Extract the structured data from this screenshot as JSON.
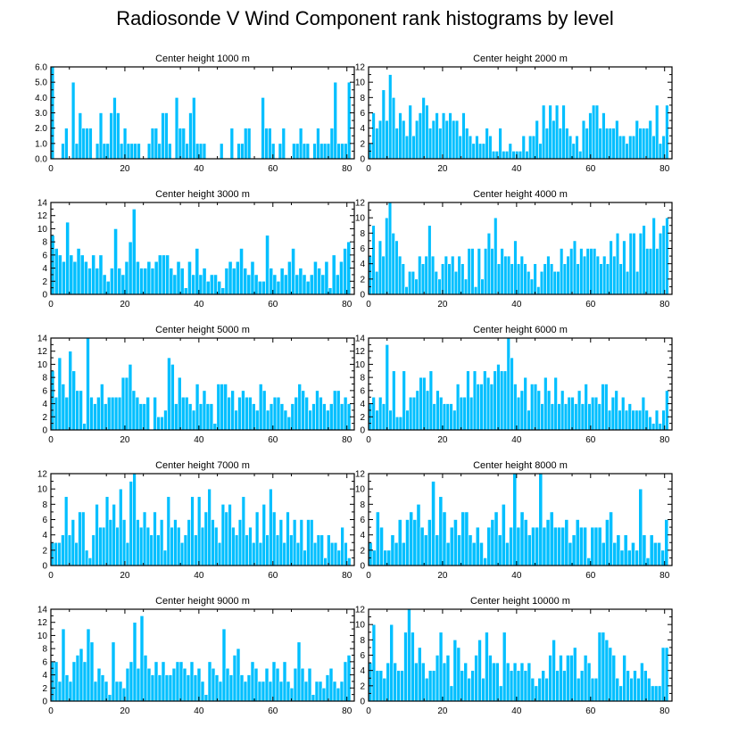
{
  "title": "Radiosonde V Wind Component rank histograms by level",
  "colors": {
    "bar": "#00bfff",
    "bar_edge": "#ffffff",
    "axis": "#000000"
  },
  "chart_data": [
    {
      "type": "bar",
      "title": "Center height 1000 m",
      "ylim": [
        0,
        6
      ],
      "yticks": [
        "0.0",
        "1.0",
        "2.0",
        "3.0",
        "4.0",
        "5.0",
        "6.0"
      ],
      "xticks": [
        "0",
        "20",
        "40",
        "60",
        "80"
      ],
      "xlim": [
        0,
        82
      ],
      "values": [
        6,
        0,
        0,
        1,
        2,
        0,
        5,
        1,
        3,
        2,
        2,
        2,
        0,
        1,
        3,
        1,
        1,
        3,
        4,
        3,
        1,
        2,
        1,
        1,
        1,
        1,
        0,
        0,
        1,
        2,
        2,
        1,
        3,
        3,
        1,
        0,
        4,
        2,
        2,
        1,
        3,
        4,
        1,
        1,
        1,
        0,
        0,
        0,
        0,
        1,
        0,
        0,
        2,
        0,
        1,
        1,
        2,
        2,
        0,
        0,
        0,
        4,
        2,
        2,
        1,
        0,
        1,
        2,
        0,
        0,
        1,
        1,
        2,
        1,
        1,
        0,
        1,
        2,
        1,
        1,
        1,
        2,
        5,
        1,
        1,
        1,
        5,
        0
      ]
    },
    {
      "type": "bar",
      "title": "Center height 2000 m",
      "ylim": [
        0,
        12
      ],
      "yticks": [
        "0",
        "2",
        "4",
        "6",
        "8",
        "10",
        "12"
      ],
      "xticks": [
        "0",
        "20",
        "40",
        "60",
        "80"
      ],
      "xlim": [
        0,
        82
      ],
      "values": [
        2,
        6,
        4,
        5,
        9,
        5,
        11,
        8,
        4,
        6,
        5,
        3,
        7,
        3,
        5,
        6,
        8,
        7,
        4,
        5,
        6,
        4,
        6,
        5,
        6,
        5,
        5,
        3,
        6,
        4,
        3,
        2,
        3,
        2,
        2,
        4,
        3,
        1,
        1,
        4,
        1,
        1,
        2,
        1,
        1,
        1,
        3,
        1,
        3,
        3,
        5,
        2,
        7,
        4,
        7,
        5,
        7,
        4,
        7,
        4,
        3,
        2,
        3,
        1,
        5,
        4,
        6,
        7,
        7,
        4,
        6,
        4,
        4,
        4,
        5,
        3,
        3,
        2,
        3,
        3,
        5,
        4,
        4,
        4,
        5,
        3,
        7,
        2,
        3,
        7,
        0
      ]
    },
    {
      "type": "bar",
      "title": "Center height 3000 m",
      "ylim": [
        0,
        14
      ],
      "yticks": [
        "0",
        "2",
        "4",
        "6",
        "8",
        "10",
        "12",
        "14"
      ],
      "xticks": [
        "0",
        "20",
        "40",
        "60",
        "80"
      ],
      "xlim": [
        0,
        82
      ],
      "values": [
        9,
        7,
        6,
        5,
        11,
        6,
        5,
        7,
        6,
        5,
        4,
        6,
        4,
        6,
        3,
        2,
        4,
        10,
        4,
        3,
        5,
        8,
        13,
        5,
        4,
        4,
        5,
        4,
        5,
        6,
        6,
        6,
        4,
        3,
        5,
        4,
        1,
        5,
        3,
        7,
        3,
        4,
        2,
        3,
        3,
        2,
        1,
        4,
        5,
        4,
        5,
        7,
        4,
        3,
        5,
        3,
        2,
        2,
        9,
        4,
        3,
        2,
        4,
        3,
        5,
        7,
        3,
        4,
        3,
        2,
        3,
        5,
        4,
        3,
        5,
        1,
        6,
        3,
        5,
        7,
        8,
        0
      ]
    },
    {
      "type": "bar",
      "title": "Center height 4000 m",
      "ylim": [
        0,
        12
      ],
      "yticks": [
        "0",
        "2",
        "4",
        "6",
        "8",
        "10",
        "12"
      ],
      "xticks": [
        "0",
        "20",
        "40",
        "60",
        "80"
      ],
      "xlim": [
        0,
        82
      ],
      "values": [
        5,
        9,
        3,
        7,
        5,
        10,
        12,
        8,
        7,
        5,
        4,
        1,
        3,
        3,
        2,
        5,
        4,
        5,
        9,
        5,
        3,
        2,
        4,
        5,
        4,
        5,
        3,
        5,
        4,
        2,
        6,
        6,
        1,
        6,
        2,
        6,
        8,
        6,
        10,
        4,
        6,
        5,
        5,
        4,
        7,
        4,
        5,
        4,
        3,
        2,
        4,
        1,
        3,
        4,
        5,
        4,
        3,
        3,
        6,
        4,
        5,
        6,
        7,
        4,
        6,
        5,
        6,
        6,
        6,
        5,
        4,
        5,
        4,
        7,
        5,
        8,
        4,
        7,
        3,
        8,
        8,
        3,
        8,
        9,
        6,
        6,
        10,
        6,
        8,
        9,
        10,
        0
      ]
    },
    {
      "type": "bar",
      "title": "Center height 5000 m",
      "ylim": [
        0,
        14
      ],
      "yticks": [
        "0",
        "2",
        "4",
        "6",
        "8",
        "10",
        "12",
        "14"
      ],
      "xticks": [
        "0",
        "20",
        "40",
        "60",
        "80"
      ],
      "xlim": [
        0,
        82
      ],
      "values": [
        9,
        5,
        11,
        7,
        5,
        12,
        9,
        6,
        6,
        1,
        14,
        5,
        4,
        5,
        7,
        4,
        5,
        5,
        5,
        5,
        8,
        8,
        10,
        6,
        5,
        4,
        4,
        5,
        0,
        5,
        2,
        2,
        3,
        11,
        10,
        4,
        8,
        5,
        5,
        4,
        3,
        7,
        4,
        6,
        4,
        4,
        1,
        7,
        7,
        7,
        5,
        6,
        3,
        5,
        6,
        5,
        5,
        4,
        3,
        7,
        6,
        3,
        4,
        5,
        5,
        4,
        3,
        2,
        4,
        5,
        7,
        6,
        5,
        3,
        4,
        6,
        5,
        4,
        3,
        4,
        6,
        6,
        4,
        5,
        4,
        0
      ]
    },
    {
      "type": "bar",
      "title": "Center height 6000 m",
      "ylim": [
        0,
        14
      ],
      "yticks": [
        "0",
        "2",
        "4",
        "6",
        "8",
        "10",
        "12",
        "14"
      ],
      "xticks": [
        "0",
        "20",
        "40",
        "60",
        "80"
      ],
      "xlim": [
        0,
        82
      ],
      "values": [
        4,
        5,
        3,
        5,
        4,
        13,
        3,
        9,
        2,
        2,
        9,
        3,
        5,
        5,
        6,
        8,
        8,
        6,
        9,
        4,
        6,
        5,
        4,
        4,
        4,
        3,
        7,
        5,
        5,
        9,
        5,
        9,
        7,
        7,
        9,
        8,
        7,
        9,
        10,
        9,
        9,
        14,
        11,
        7,
        5,
        6,
        8,
        3,
        7,
        7,
        6,
        4,
        8,
        6,
        4,
        8,
        4,
        6,
        4,
        5,
        5,
        4,
        6,
        4,
        7,
        4,
        5,
        5,
        4,
        7,
        7,
        3,
        5,
        6,
        3,
        5,
        3,
        4,
        3,
        3,
        3,
        5,
        3,
        2,
        1,
        3,
        1,
        3,
        6,
        0
      ]
    },
    {
      "type": "bar",
      "title": "Center height 7000 m",
      "ylim": [
        0,
        12
      ],
      "yticks": [
        "0",
        "2",
        "4",
        "6",
        "8",
        "10",
        "12"
      ],
      "xticks": [
        "0",
        "20",
        "40",
        "60",
        "80"
      ],
      "xlim": [
        0,
        82
      ],
      "values": [
        3,
        3,
        3,
        4,
        9,
        4,
        6,
        3,
        7,
        7,
        2,
        1,
        4,
        8,
        5,
        5,
        9,
        6,
        8,
        5,
        10,
        6,
        3,
        11,
        12,
        6,
        5,
        7,
        5,
        4,
        7,
        4,
        6,
        2,
        9,
        5,
        6,
        5,
        3,
        4,
        6,
        9,
        4,
        9,
        5,
        7,
        10,
        6,
        5,
        3,
        8,
        7,
        8,
        5,
        4,
        6,
        9,
        4,
        5,
        3,
        7,
        3,
        8,
        4,
        10,
        7,
        4,
        6,
        3,
        7,
        4,
        6,
        3,
        6,
        2,
        6,
        6,
        3,
        4,
        4,
        1,
        4,
        3,
        3,
        2,
        5,
        3,
        1,
        0
      ]
    },
    {
      "type": "bar",
      "title": "Center height 8000 m",
      "ylim": [
        0,
        12
      ],
      "yticks": [
        "0",
        "2",
        "4",
        "6",
        "8",
        "10",
        "12"
      ],
      "xticks": [
        "0",
        "20",
        "40",
        "60",
        "80"
      ],
      "xlim": [
        0,
        82
      ],
      "values": [
        3,
        2,
        7,
        5,
        2,
        2,
        4,
        3,
        6,
        3,
        6,
        7,
        6,
        8,
        5,
        4,
        6,
        11,
        4,
        9,
        7,
        3,
        5,
        6,
        4,
        7,
        7,
        4,
        3,
        5,
        3,
        1,
        5,
        6,
        7,
        4,
        8,
        3,
        5,
        12,
        5,
        7,
        6,
        4,
        5,
        5,
        12,
        5,
        6,
        7,
        5,
        5,
        5,
        6,
        3,
        4,
        6,
        5,
        5,
        1,
        5,
        5,
        5,
        3,
        6,
        7,
        3,
        4,
        2,
        4,
        2,
        3,
        2,
        10,
        4,
        1,
        4,
        3,
        3,
        2,
        6,
        0
      ]
    },
    {
      "type": "bar",
      "title": "Center height 9000 m",
      "ylim": [
        0,
        14
      ],
      "yticks": [
        "0",
        "2",
        "4",
        "6",
        "8",
        "10",
        "12",
        "14"
      ],
      "xticks": [
        "0",
        "20",
        "40",
        "60",
        "80"
      ],
      "xlim": [
        0,
        82
      ],
      "values": [
        6,
        6,
        3,
        11,
        4,
        3,
        6,
        7,
        8,
        6,
        11,
        9,
        3,
        5,
        4,
        3,
        1,
        9,
        3,
        3,
        2,
        5,
        6,
        12,
        5,
        13,
        7,
        5,
        4,
        6,
        4,
        6,
        4,
        4,
        5,
        6,
        6,
        5,
        4,
        6,
        4,
        5,
        3,
        1,
        6,
        5,
        4,
        3,
        11,
        5,
        4,
        7,
        8,
        4,
        3,
        4,
        6,
        5,
        3,
        3,
        5,
        3,
        6,
        5,
        3,
        6,
        3,
        2,
        5,
        9,
        5,
        3,
        5,
        1,
        3,
        3,
        2,
        4,
        5,
        3,
        2,
        3,
        6,
        7,
        0
      ]
    },
    {
      "type": "bar",
      "title": "Center height 10000 m",
      "ylim": [
        0,
        12
      ],
      "yticks": [
        "0",
        "2",
        "4",
        "6",
        "8",
        "10",
        "12"
      ],
      "xticks": [
        "0",
        "20",
        "40",
        "60",
        "80"
      ],
      "xlim": [
        0,
        82
      ],
      "values": [
        5,
        10,
        4,
        4,
        3,
        5,
        10,
        5,
        4,
        4,
        9,
        12,
        9,
        5,
        7,
        5,
        3,
        4,
        4,
        6,
        9,
        5,
        6,
        2,
        8,
        7,
        4,
        5,
        3,
        4,
        6,
        8,
        3,
        9,
        6,
        5,
        5,
        2,
        9,
        5,
        4,
        5,
        4,
        5,
        4,
        5,
        3,
        2,
        3,
        4,
        3,
        6,
        8,
        4,
        6,
        4,
        6,
        6,
        7,
        3,
        4,
        6,
        5,
        3,
        3,
        9,
        9,
        8,
        7,
        6,
        3,
        2,
        6,
        4,
        3,
        4,
        3,
        5,
        4,
        3,
        2,
        2,
        2,
        7,
        7,
        0
      ]
    }
  ]
}
